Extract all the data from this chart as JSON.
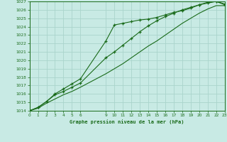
{
  "title": "Graphe pression niveau de la mer (hPa)",
  "bg_color": "#c8eae4",
  "grid_color": "#aad4cc",
  "line_color": "#1a6b1a",
  "x_ticks": [
    0,
    1,
    2,
    3,
    4,
    5,
    6,
    9,
    10,
    11,
    12,
    13,
    14,
    15,
    16,
    17,
    18,
    19,
    20,
    21,
    22,
    23
  ],
  "ylim": [
    1014,
    1027
  ],
  "xlim": [
    0,
    23
  ],
  "yticks": [
    1014,
    1015,
    1016,
    1017,
    1018,
    1019,
    1020,
    1021,
    1022,
    1023,
    1024,
    1025,
    1026,
    1027
  ],
  "series1_x": [
    0,
    1,
    2,
    3,
    4,
    5,
    6,
    9,
    10,
    11,
    12,
    13,
    14,
    15,
    16,
    17,
    18,
    19,
    20,
    21,
    22,
    23
  ],
  "series1_y": [
    1014.0,
    1014.4,
    1015.1,
    1016.0,
    1016.6,
    1017.2,
    1017.8,
    1022.3,
    1024.2,
    1024.4,
    1024.6,
    1024.8,
    1024.9,
    1025.1,
    1025.4,
    1025.7,
    1025.9,
    1026.2,
    1026.6,
    1026.9,
    1027.0,
    1026.7
  ],
  "series2_x": [
    0,
    1,
    2,
    3,
    4,
    5,
    6,
    9,
    10,
    11,
    12,
    13,
    14,
    15,
    16,
    17,
    18,
    19,
    20,
    21,
    22,
    23
  ],
  "series2_y": [
    1014.0,
    1014.4,
    1015.1,
    1015.9,
    1016.3,
    1016.8,
    1017.3,
    1020.3,
    1021.0,
    1021.8,
    1022.6,
    1023.4,
    1024.1,
    1024.7,
    1025.2,
    1025.6,
    1026.0,
    1026.3,
    1026.6,
    1026.8,
    1027.0,
    1026.6
  ],
  "series3_x": [
    0,
    1,
    2,
    3,
    4,
    5,
    6,
    9,
    10,
    11,
    12,
    13,
    14,
    15,
    16,
    17,
    18,
    19,
    20,
    21,
    22,
    23
  ],
  "series3_y": [
    1014.0,
    1014.3,
    1014.9,
    1015.4,
    1015.9,
    1016.3,
    1016.8,
    1018.4,
    1019.0,
    1019.6,
    1020.3,
    1021.0,
    1021.7,
    1022.3,
    1023.0,
    1023.7,
    1024.4,
    1025.0,
    1025.6,
    1026.1,
    1026.5,
    1026.5
  ]
}
